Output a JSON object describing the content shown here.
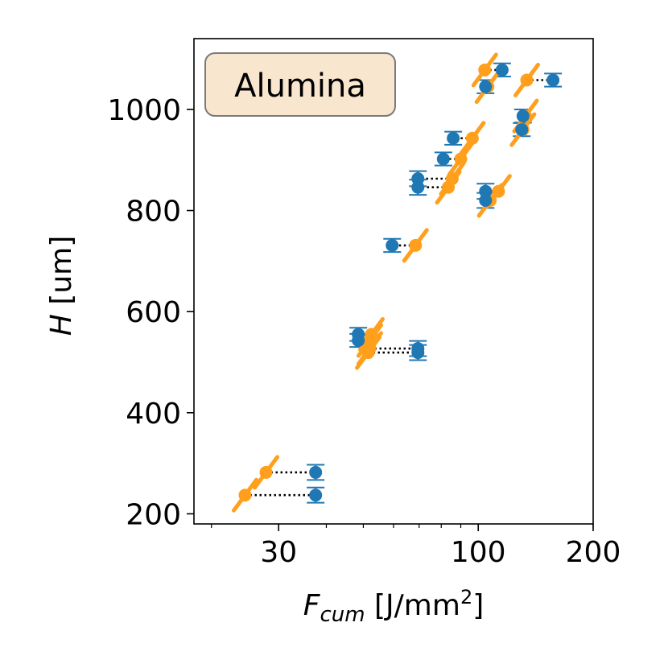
{
  "chart_data": {
    "type": "scatter",
    "title": "",
    "annotation": "Alumina",
    "xlabel": {
      "main": "F",
      "sub": "cum",
      "unit_prefix": " [J/mm",
      "unit_sup": "2",
      "unit_suffix": "]"
    },
    "ylabel": {
      "main": "H",
      "unit": " [um]"
    },
    "x_scale": "log",
    "xlim": [
      18,
      200
    ],
    "ylim": [
      180,
      1140
    ],
    "x_ticks": [
      30,
      100,
      200
    ],
    "x_tick_labels": [
      "30",
      "100",
      "200"
    ],
    "y_ticks": [
      200,
      400,
      600,
      800,
      1000
    ],
    "y_tick_labels": [
      "200",
      "400",
      "600",
      "800",
      "1000"
    ],
    "grid": false,
    "colors": {
      "measured": "#1f77b4",
      "fit": "#ff9f1c",
      "link": "#000000"
    },
    "points": [
      {
        "measured": 37.5,
        "fit": 24.5,
        "y": 237,
        "yerr": 15
      },
      {
        "measured": 37.5,
        "fit": 27.8,
        "y": 282,
        "yerr": 15
      },
      {
        "measured": 48.5,
        "fit": 52.0,
        "y": 543,
        "yerr": 13
      },
      {
        "measured": 48.5,
        "fit": 52.5,
        "y": 555,
        "yerr": 13
      },
      {
        "measured": 69.5,
        "fit": 51.5,
        "y": 519,
        "yerr": 15
      },
      {
        "measured": 69.5,
        "fit": 52.0,
        "y": 527,
        "yerr": 15
      },
      {
        "measured": 59.5,
        "fit": 68.5,
        "y": 731,
        "yerr": 13
      },
      {
        "measured": 69.5,
        "fit": 83.5,
        "y": 846,
        "yerr": 15
      },
      {
        "measured": 69.5,
        "fit": 85.5,
        "y": 863,
        "yerr": 15
      },
      {
        "measured": 81.0,
        "fit": 90.0,
        "y": 902,
        "yerr": 13
      },
      {
        "measured": 86.0,
        "fit": 96.5,
        "y": 943,
        "yerr": 13
      },
      {
        "measured": 104.5,
        "fit": 107.5,
        "y": 820,
        "yerr": 15
      },
      {
        "measured": 104.5,
        "fit": 113.0,
        "y": 838,
        "yerr": 15
      },
      {
        "measured": 104.5,
        "fit": 106.0,
        "y": 1045,
        "yerr": 13
      },
      {
        "measured": 115.5,
        "fit": 104.0,
        "y": 1078,
        "yerr": 13
      },
      {
        "measured": 130.0,
        "fit": 131.0,
        "y": 960,
        "yerr": 13
      },
      {
        "measured": 131.0,
        "fit": 133.0,
        "y": 987,
        "yerr": 13
      },
      {
        "measured": 157.0,
        "fit": 134.0,
        "y": 1058,
        "yerr": 13
      }
    ]
  }
}
